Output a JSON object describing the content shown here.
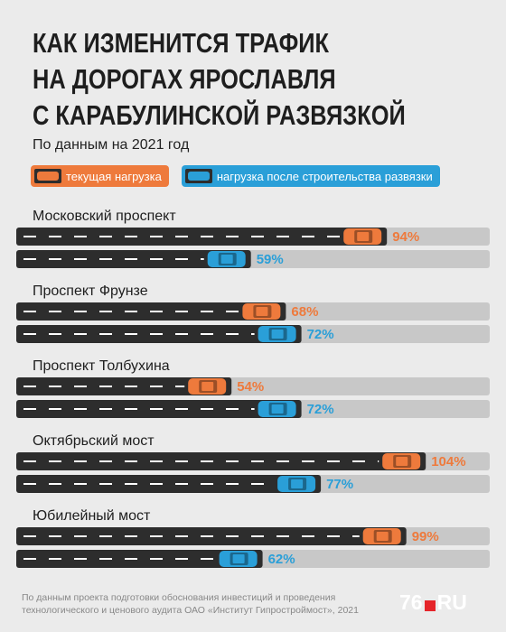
{
  "chart_data": {
    "type": "road-bar",
    "title": "КАК ИЗМЕНИТСЯ ТРАФИК\nНА ДОРОГАХ ЯРОСЛАВЛЯ\nС КАРАБУЛИНСКОЙ РАЗВЯЗКОЙ",
    "subtitle": "По данным на 2021 год",
    "categories": [
      "Московский проспект",
      "Проспект Фрунзе",
      "Проспект Толбухина",
      "Октябрьский мост",
      "Юбилейный мост"
    ],
    "series": [
      {
        "name": "текущая нагрузка",
        "color": "#ee7a3c",
        "values": [
          94,
          68,
          54,
          104,
          99
        ],
        "value_labels": [
          "94%",
          "68%",
          "54%",
          "104%",
          "99%"
        ]
      },
      {
        "name": "нагрузка после строительства развязки",
        "color": "#2a9fd8",
        "values": [
          59,
          72,
          72,
          77,
          62
        ],
        "value_labels": [
          "59%",
          "72%",
          "72%",
          "77%",
          "62%"
        ]
      }
    ]
  },
  "footnote": "По данным проекта подготовки обоснования инвестиций и проведения технологического и ценового аудита ОАО «Институт Гипростроймост», 2021",
  "logo": {
    "number": "76",
    "domain": "RU"
  }
}
